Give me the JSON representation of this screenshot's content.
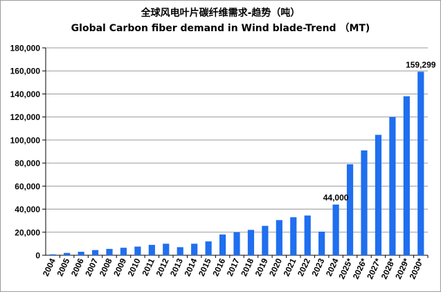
{
  "chart_data": {
    "type": "bar",
    "title": "全球风电叶片碳纤维需求-趋势（吨）",
    "subtitle": "Global Carbon fiber demand in Wind blade-Trend （MT)",
    "xlabel": "",
    "ylabel": "",
    "ylim": [
      0,
      180000
    ],
    "yticks": [
      0,
      20000,
      40000,
      60000,
      80000,
      100000,
      120000,
      140000,
      160000,
      180000
    ],
    "ytick_labels": [
      "0",
      "20,000",
      "40,000",
      "60,000",
      "80,000",
      "100,000",
      "120,000",
      "140,000",
      "160,000",
      "180,000"
    ],
    "grid": "horizontal",
    "categories": [
      "2004",
      "2005",
      "2006",
      "2007",
      "2008",
      "2009",
      "2010",
      "2011",
      "2012",
      "2013",
      "2014",
      "2015",
      "2016",
      "2017",
      "2018",
      "2019",
      "2020",
      "2021",
      "2022",
      "2023",
      "2024",
      "2025*",
      "2026*",
      "2027*",
      "2028*",
      "2029*",
      "2030*"
    ],
    "values": [
      800,
      2000,
      3000,
      4500,
      5500,
      6500,
      7500,
      9000,
      10000,
      7000,
      10000,
      12000,
      18000,
      20000,
      22000,
      25500,
      30500,
      33000,
      34500,
      20500,
      44000,
      79000,
      91000,
      104500,
      120000,
      138000,
      159299
    ],
    "bar_color": "#1f6fef",
    "annotations": [
      {
        "category": "2024",
        "text": "44,000"
      },
      {
        "category": "2030*",
        "text": "159,299"
      }
    ]
  }
}
